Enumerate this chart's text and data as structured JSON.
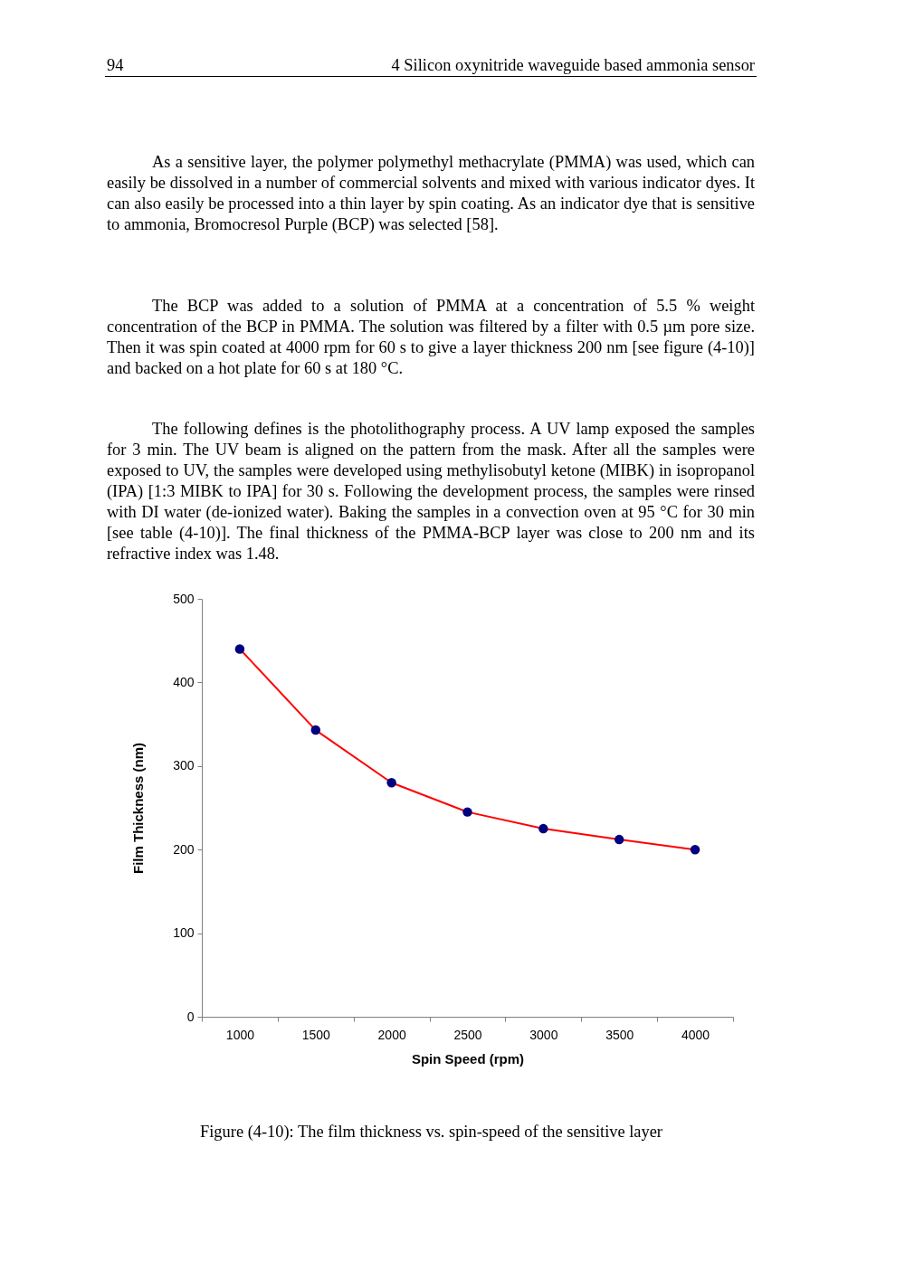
{
  "chart_data": {
    "type": "line",
    "xlabel": "Spin Speed (rpm)",
    "ylabel": "Film Thickness (nm)",
    "categories": [
      "1000",
      "1500",
      "2000",
      "2500",
      "3000",
      "3500",
      "4000"
    ],
    "series": [
      {
        "color": "#ff0000",
        "colors": [
          "#000080",
          "#000080",
          "#000080",
          "#000080",
          "#000080",
          "#000080",
          "#000080"
        ],
        "values": [
          440,
          343,
          280,
          245,
          225,
          212,
          200
        ]
      }
    ],
    "marker": "circle",
    "line_style": "solid",
    "grid": false,
    "ylim": [
      0,
      500
    ],
    "yticks": [
      0,
      100,
      200,
      300,
      400,
      500
    ],
    "annotations": [
      "94",
      "4 Silicon oxynitride waveguide based ammonia sensor",
      "As a sensitive layer, the polymer polymethyl methacrylate (PMMA) was used, which can easily be dissolved in a number of commercial solvents and mixed with various indicator dyes. It can also easily be processed into a thin layer by spin coating. As an indicator dye that is sensitive to ammonia, Bromocresol Purple (BCP) was selected [58].",
      "The BCP was added to a solution of PMMA at a concentration of 5.5 % weight concentration of the BCP in PMMA. The solution was filtered by a filter with 0.5 µm pore size. Then it was spin coated at 4000 rpm for 60 s to give a layer thickness 200 nm [see figure (4-10)] and backed on a hot plate for 60 s at 180 °C.",
      "The following defines is the photolithography process. A UV lamp exposed the samples for 3 min. The UV beam is aligned on the pattern from the mask. After all the samples were exposed to UV, the samples were developed using methylisobutyl ketone (MIBK) in isopropanol (IPA) [1:3 MIBK to IPA] for 30 s. Following the development process, the samples were rinsed with DI water (de-ionized water). Baking the samples in a convection oven at 95 °C for 30 min [see table (4-10)]. The final thickness of the PMMA-BCP layer was close to 200 nm and its refractive index was 1.48.",
      "Figure (4-10): The film thickness vs. spin-speed of the sensitive layer"
    ]
  }
}
